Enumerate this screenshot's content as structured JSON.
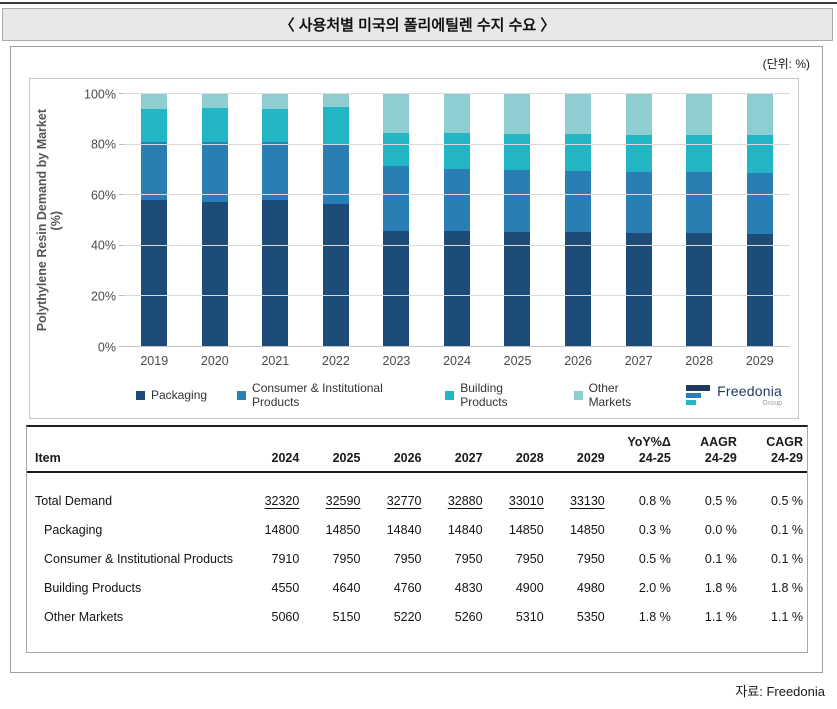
{
  "page": {
    "title": "〈 사용처별 미국의 폴리에틸렌 수지 수요 〉",
    "unit_label": "(단위: %)",
    "source_label": "자료: Freedonia"
  },
  "colors": {
    "packaging": "#1d4c78",
    "consumer": "#2b7eb4",
    "building": "#22b6c5",
    "other": "#8ecdd0",
    "gridline": "#d9d9d9"
  },
  "logo": {
    "name": "Freedonia",
    "sub": "Group"
  },
  "chart_data": {
    "type": "bar",
    "stacked": true,
    "percent_stacked": true,
    "title": "",
    "ylabel": "Polythylene Resin Demand by Market",
    "ylabel_line2": "(%)",
    "ylim": [
      0,
      100
    ],
    "grid": true,
    "legend_position": "bottom",
    "yticks": [
      {
        "label": "100%",
        "value": 100
      },
      {
        "label": "80%",
        "value": 80
      },
      {
        "label": "60%",
        "value": 60
      },
      {
        "label": "40%",
        "value": 40
      },
      {
        "label": "20%",
        "value": 20
      },
      {
        "label": "0%",
        "value": 0
      }
    ],
    "categories": [
      "2019",
      "2020",
      "2021",
      "2022",
      "2023",
      "2024",
      "2025",
      "2026",
      "2027",
      "2028",
      "2029"
    ],
    "series": [
      {
        "name": "Packaging",
        "color": "#1d4c78",
        "values": [
          58.0,
          57.5,
          58.0,
          56.5,
          46.0,
          45.8,
          45.6,
          45.3,
          45.1,
          45.0,
          44.8
        ]
      },
      {
        "name": "Consumer & Institutional Products",
        "color": "#2b7eb4",
        "values": [
          23.0,
          23.5,
          23.0,
          23.5,
          25.5,
          24.5,
          24.4,
          24.3,
          24.2,
          24.1,
          24.0
        ]
      },
      {
        "name": "Building Products",
        "color": "#22b6c5",
        "values": [
          13.0,
          13.5,
          13.0,
          15.0,
          13.0,
          14.1,
          14.2,
          14.5,
          14.7,
          14.8,
          15.0
        ]
      },
      {
        "name": "Other Markets",
        "color": "#8ecdd0",
        "values": [
          6.0,
          5.5,
          6.0,
          5.0,
          15.5,
          15.6,
          15.8,
          15.9,
          16.0,
          16.1,
          16.2
        ]
      }
    ]
  },
  "table": {
    "columns": [
      {
        "l1": "",
        "l2": "Item"
      },
      {
        "l1": "",
        "l2": "2024"
      },
      {
        "l1": "",
        "l2": "2025"
      },
      {
        "l1": "",
        "l2": "2026"
      },
      {
        "l1": "",
        "l2": "2027"
      },
      {
        "l1": "",
        "l2": "2028"
      },
      {
        "l1": "",
        "l2": "2029"
      },
      {
        "l1": "YoY%Δ",
        "l2": "24-25"
      },
      {
        "l1": "AAGR",
        "l2": "24-29"
      },
      {
        "l1": "CAGR",
        "l2": "24-29"
      }
    ],
    "rows": [
      {
        "item": "Total Demand",
        "indent": false,
        "underline": true,
        "values": [
          "32320",
          "32590",
          "32770",
          "32880",
          "33010",
          "33130",
          "0.8 %",
          "0.5 %",
          "0.5 %"
        ]
      },
      {
        "item": "Packaging",
        "indent": true,
        "underline": false,
        "values": [
          "14800",
          "14850",
          "14840",
          "14840",
          "14850",
          "14850",
          "0.3 %",
          "0.0 %",
          "0.1 %"
        ]
      },
      {
        "item": "Consumer & Institutional Products",
        "indent": true,
        "underline": false,
        "values": [
          "7910",
          "7950",
          "7950",
          "7950",
          "7950",
          "7950",
          "0.5 %",
          "0.1 %",
          "0.1 %"
        ]
      },
      {
        "item": "Building Products",
        "indent": true,
        "underline": false,
        "values": [
          "4550",
          "4640",
          "4760",
          "4830",
          "4900",
          "4980",
          "2.0 %",
          "1.8 %",
          "1.8 %"
        ]
      },
      {
        "item": "Other Markets",
        "indent": true,
        "underline": false,
        "values": [
          "5060",
          "5150",
          "5220",
          "5260",
          "5310",
          "5350",
          "1.8 %",
          "1.1 %",
          "1.1 %"
        ]
      }
    ]
  }
}
